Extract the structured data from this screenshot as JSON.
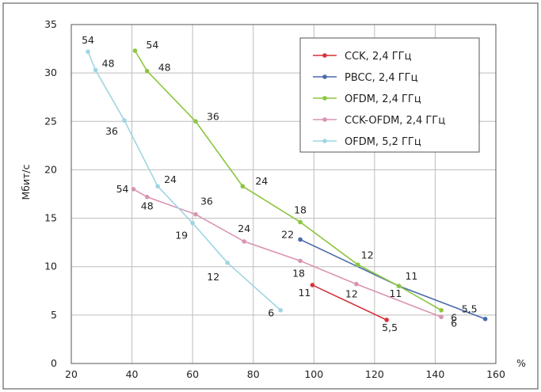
{
  "chart_data": {
    "type": "line",
    "title": "",
    "xlabel": "%",
    "ylabel": "Мбит/с",
    "xlim": [
      20,
      160
    ],
    "ylim": [
      0,
      35
    ],
    "xticks": [
      "20",
      "40",
      "60",
      "80",
      "100",
      "120",
      "140",
      "160"
    ],
    "yticks": [
      "0",
      "5",
      "10",
      "15",
      "20",
      "25",
      "30",
      "35"
    ],
    "grid": true,
    "legend_position": "top-right",
    "series": [
      {
        "name": "CCK, 2,4 ГГц",
        "color": "#d6323c",
        "points": [
          {
            "x": 99.5,
            "y": 8.1,
            "label": "11"
          },
          {
            "x": 124,
            "y": 4.5,
            "label": "5,5"
          }
        ]
      },
      {
        "name": "PBCC, 2,4 ГГц",
        "color": "#4a6aaa",
        "points": [
          {
            "x": 95.5,
            "y": 12.8,
            "label": "22"
          },
          {
            "x": 128,
            "y": 8.0,
            "label": "11"
          },
          {
            "x": 156.5,
            "y": 4.6,
            "label": "5,5"
          }
        ]
      },
      {
        "name": "OFDM, 2,4 ГГц",
        "color": "#8cc63f",
        "points": [
          {
            "x": 41,
            "y": 32.3,
            "label": "54"
          },
          {
            "x": 45,
            "y": 30.2,
            "label": "48"
          },
          {
            "x": 61,
            "y": 25.0,
            "label": "36"
          },
          {
            "x": 76.5,
            "y": 18.3,
            "label": "24"
          },
          {
            "x": 95.5,
            "y": 14.6,
            "label": "18"
          },
          {
            "x": 114.5,
            "y": 10.2,
            "label": "12"
          },
          {
            "x": 128,
            "y": 8.0,
            "label": "11"
          },
          {
            "x": 142,
            "y": 5.5,
            "label": "6"
          }
        ]
      },
      {
        "name": "CCK-OFDM, 2,4 ГГц",
        "color": "#d993b3",
        "points": [
          {
            "x": 40.5,
            "y": 18.0,
            "label": "54"
          },
          {
            "x": 45,
            "y": 17.2,
            "label": "48"
          },
          {
            "x": 61,
            "y": 15.4,
            "label": "36"
          },
          {
            "x": 77,
            "y": 12.6,
            "label": "24"
          },
          {
            "x": 95.5,
            "y": 10.6,
            "label": "18"
          },
          {
            "x": 114,
            "y": 8.2,
            "label": "12"
          },
          {
            "x": 142,
            "y": 4.8,
            "label": "6"
          }
        ]
      },
      {
        "name": "OFDM, 5,2 ГГц",
        "color": "#9fd5e3",
        "points": [
          {
            "x": 25.5,
            "y": 32.2,
            "label": "54"
          },
          {
            "x": 28,
            "y": 30.3,
            "label": "48"
          },
          {
            "x": 37.5,
            "y": 25.1,
            "label": "36"
          },
          {
            "x": 48.5,
            "y": 18.3,
            "label": "24"
          },
          {
            "x": 60,
            "y": 14.5,
            "label": "19"
          },
          {
            "x": 71.5,
            "y": 10.4,
            "label": "12"
          },
          {
            "x": 89,
            "y": 5.5,
            "label": "6"
          }
        ]
      }
    ]
  }
}
